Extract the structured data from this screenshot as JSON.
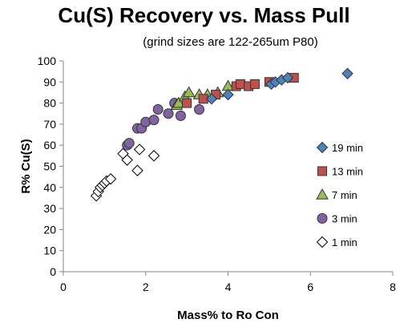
{
  "chart_data": {
    "type": "scatter",
    "title": "Cu(S) Recovery vs. Mass Pull",
    "subtitle": "(grind sizes are 122-265um P80)",
    "xlabel": "Mass% to Ro Con",
    "ylabel": "R% Cu(S)",
    "xlim": [
      0,
      8
    ],
    "ylim": [
      0,
      100
    ],
    "xticks": [
      0,
      2,
      4,
      6,
      8
    ],
    "yticks": [
      0,
      10,
      20,
      30,
      40,
      50,
      60,
      70,
      80,
      90,
      100
    ],
    "xtick_labels": [
      "0",
      "2",
      "4",
      "6",
      "8"
    ],
    "ytick_labels": [
      "0",
      "10",
      "20",
      "30",
      "40",
      "50",
      "60",
      "70",
      "80",
      "90",
      "100"
    ],
    "grid": false,
    "legend_position": "right-inside",
    "series": [
      {
        "name": "19 min",
        "marker": "diamond",
        "color": "#4f81bd",
        "x": [
          3.6,
          4.0,
          5.05,
          5.15,
          5.3,
          5.45,
          6.9
        ],
        "y": [
          82,
          84,
          89,
          90,
          91,
          92,
          94
        ]
      },
      {
        "name": "13 min",
        "marker": "square",
        "color": "#c0504d",
        "x": [
          3.0,
          3.4,
          3.7,
          4.2,
          4.3,
          4.5,
          4.65,
          5.0,
          5.6
        ],
        "y": [
          80,
          82,
          84,
          88,
          89,
          88,
          89,
          90,
          92
        ]
      },
      {
        "name": "7 min",
        "marker": "triangle",
        "color": "#9bbb59",
        "x": [
          2.75,
          2.8,
          2.95,
          3.05,
          3.3,
          3.5,
          3.75,
          4.0
        ],
        "y": [
          79,
          80,
          83,
          85,
          84,
          84,
          85,
          88
        ]
      },
      {
        "name": "3 min",
        "marker": "circle",
        "color": "#8064a2",
        "x": [
          1.55,
          1.6,
          1.8,
          1.9,
          2.0,
          2.2,
          2.3,
          2.55,
          2.7,
          2.85,
          3.3
        ],
        "y": [
          60,
          61,
          68,
          68,
          71,
          72,
          77,
          75,
          80,
          74,
          77
        ]
      },
      {
        "name": "1 min",
        "marker": "diamond-open",
        "color": "#ffffff",
        "x": [
          0.8,
          0.85,
          0.9,
          0.95,
          1.0,
          1.05,
          1.15,
          1.45,
          1.55,
          1.8,
          1.85,
          2.2
        ],
        "y": [
          36,
          38,
          40,
          41,
          42,
          43,
          44,
          56,
          53,
          48,
          58,
          55
        ]
      }
    ]
  }
}
